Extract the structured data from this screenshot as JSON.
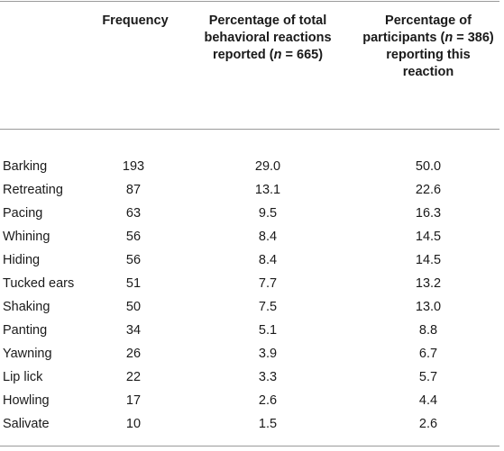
{
  "table": {
    "headers": {
      "frequency": "Frequency",
      "pct_total_l1": "Percentage of total",
      "pct_total_l2": "behavioral reactions",
      "pct_total_l3_a": "reported (",
      "pct_total_l3_n": "n",
      "pct_total_l3_b": " = 665)",
      "pct_part_l1": "Percentage of",
      "pct_part_l2_a": "participants (",
      "pct_part_l2_n": "n",
      "pct_part_l2_b": " = 386)",
      "pct_part_l3": "reporting this",
      "pct_part_l4": "reaction"
    },
    "rows": [
      {
        "name": "Barking",
        "frequency": "193",
        "pct_total": "29.0",
        "pct_participants": "50.0"
      },
      {
        "name": "Retreating",
        "frequency": "87",
        "pct_total": "13.1",
        "pct_participants": "22.6"
      },
      {
        "name": "Pacing",
        "frequency": "63",
        "pct_total": "9.5",
        "pct_participants": "16.3"
      },
      {
        "name": "Whining",
        "frequency": "56",
        "pct_total": "8.4",
        "pct_participants": "14.5"
      },
      {
        "name": "Hiding",
        "frequency": "56",
        "pct_total": "8.4",
        "pct_participants": "14.5"
      },
      {
        "name": "Tucked ears",
        "frequency": "51",
        "pct_total": "7.7",
        "pct_participants": "13.2"
      },
      {
        "name": "Shaking",
        "frequency": "50",
        "pct_total": "7.5",
        "pct_participants": "13.0"
      },
      {
        "name": "Panting",
        "frequency": "34",
        "pct_total": "5.1",
        "pct_participants": "8.8"
      },
      {
        "name": "Yawning",
        "frequency": "26",
        "pct_total": "3.9",
        "pct_participants": "6.7"
      },
      {
        "name": "Lip lick",
        "frequency": "22",
        "pct_total": "3.3",
        "pct_participants": "5.7"
      },
      {
        "name": "Howling",
        "frequency": "17",
        "pct_total": "2.6",
        "pct_participants": "4.4"
      },
      {
        "name": "Salivate",
        "frequency": "10",
        "pct_total": "1.5",
        "pct_participants": "2.6"
      }
    ]
  }
}
